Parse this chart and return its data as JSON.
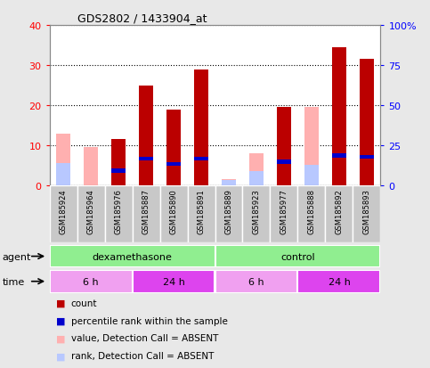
{
  "title": "GDS2802 / 1433904_at",
  "samples": [
    "GSM185924",
    "GSM185964",
    "GSM185976",
    "GSM185887",
    "GSM185890",
    "GSM185891",
    "GSM185889",
    "GSM185923",
    "GSM185977",
    "GSM185888",
    "GSM185892",
    "GSM185893"
  ],
  "count_values": [
    0,
    0,
    11.5,
    25,
    19,
    29,
    0,
    0,
    19.5,
    0,
    34.5,
    31.5
  ],
  "rank_values": [
    0,
    0,
    10.5,
    18,
    14.5,
    18,
    0,
    0,
    16,
    0,
    20,
    19
  ],
  "absent_value_values": [
    13,
    9.5,
    0,
    0,
    0,
    0,
    1.5,
    8,
    0,
    19.5,
    0,
    0
  ],
  "absent_rank_values": [
    14,
    0,
    0,
    0,
    0,
    0,
    3.5,
    9,
    0,
    13,
    0,
    0
  ],
  "left_ylim": [
    0,
    40
  ],
  "right_ylim": [
    0,
    100
  ],
  "left_yticks": [
    0,
    10,
    20,
    30,
    40
  ],
  "right_yticks": [
    0,
    25,
    50,
    75,
    100
  ],
  "left_yticklabels": [
    "0",
    "10",
    "20",
    "30",
    "40"
  ],
  "right_yticklabels": [
    "0",
    "25",
    "50",
    "75",
    "100%"
  ],
  "color_count": "#bb0000",
  "color_rank": "#0000cc",
  "color_absent_value": "#ffb0b0",
  "color_absent_rank": "#b8c8ff",
  "agent_groups": [
    {
      "label": "dexamethasone",
      "start": 0,
      "end": 6,
      "color": "#90ee90"
    },
    {
      "label": "control",
      "start": 6,
      "end": 12,
      "color": "#90ee90"
    }
  ],
  "time_groups": [
    {
      "label": "6 h",
      "start": 0,
      "end": 3,
      "color": "#f0a0f0"
    },
    {
      "label": "24 h",
      "start": 3,
      "end": 6,
      "color": "#dd44ee"
    },
    {
      "label": "6 h",
      "start": 6,
      "end": 9,
      "color": "#f0a0f0"
    },
    {
      "label": "24 h",
      "start": 9,
      "end": 12,
      "color": "#dd44ee"
    }
  ],
  "bar_width": 0.5,
  "legend_items": [
    {
      "label": "count",
      "color": "#bb0000"
    },
    {
      "label": "percentile rank within the sample",
      "color": "#0000cc"
    },
    {
      "label": "value, Detection Call = ABSENT",
      "color": "#ffb0b0"
    },
    {
      "label": "rank, Detection Call = ABSENT",
      "color": "#b8c8ff"
    }
  ],
  "bg_color": "#e8e8e8",
  "plot_bg": "#ffffff",
  "tick_bg": "#c8c8c8"
}
